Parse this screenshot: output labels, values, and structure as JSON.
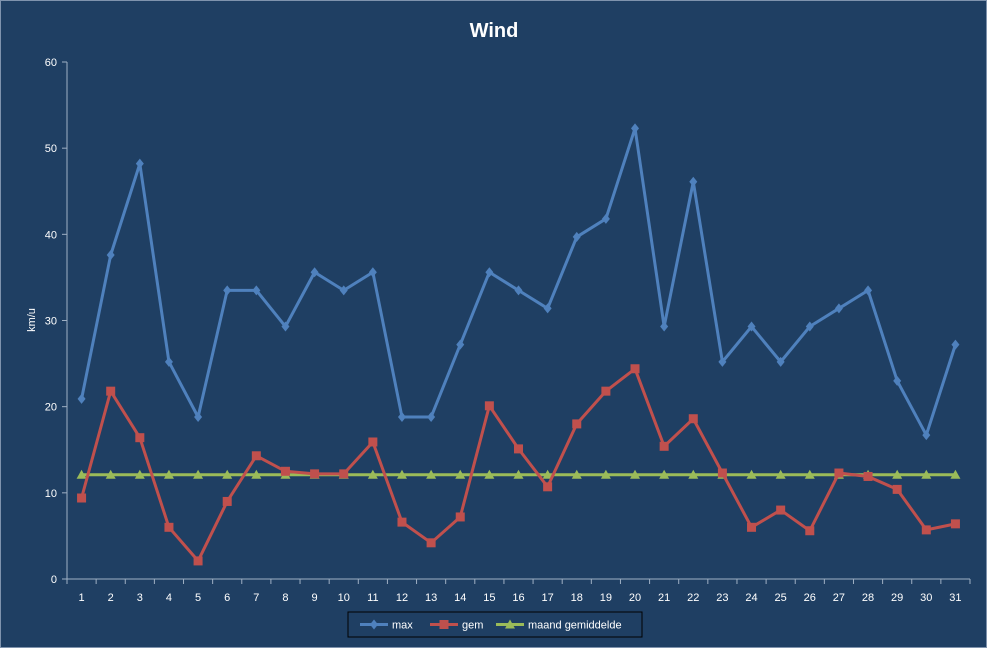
{
  "chart_data": {
    "type": "line",
    "title": "Wind",
    "ylabel": "km/u",
    "xlabel": "",
    "ylim": [
      0,
      60
    ],
    "yticks": [
      0,
      10,
      20,
      30,
      40,
      50,
      60
    ],
    "categories": [
      "1",
      "2",
      "3",
      "4",
      "5",
      "6",
      "7",
      "8",
      "9",
      "10",
      "11",
      "12",
      "13",
      "14",
      "15",
      "16",
      "17",
      "18",
      "19",
      "20",
      "21",
      "22",
      "23",
      "24",
      "25",
      "26",
      "27",
      "28",
      "29",
      "30",
      "31"
    ],
    "series": [
      {
        "name": "max",
        "color": "#4F81BD",
        "marker": "diamond",
        "values": [
          20.9,
          37.6,
          48.2,
          25.2,
          18.8,
          33.5,
          33.5,
          29.3,
          35.6,
          33.5,
          35.6,
          18.8,
          18.8,
          27.2,
          35.6,
          33.5,
          31.4,
          39.7,
          41.8,
          52.3,
          29.3,
          46.1,
          25.2,
          29.3,
          25.2,
          29.3,
          31.4,
          33.5,
          23.0,
          16.7,
          27.2
        ]
      },
      {
        "name": "gem",
        "color": "#C0504D",
        "marker": "square",
        "values": [
          9.4,
          21.8,
          16.4,
          6.0,
          2.1,
          9.0,
          14.3,
          12.5,
          12.2,
          12.2,
          15.9,
          6.6,
          4.2,
          7.2,
          20.1,
          15.1,
          10.7,
          18.0,
          21.8,
          24.4,
          15.4,
          18.6,
          12.3,
          6.0,
          8.0,
          5.6,
          12.3,
          11.9,
          10.4,
          5.7,
          6.4
        ]
      },
      {
        "name": "maand gemiddelde",
        "color": "#9BBB59",
        "marker": "triangle",
        "values": [
          12.1,
          12.1,
          12.1,
          12.1,
          12.1,
          12.1,
          12.1,
          12.1,
          12.1,
          12.1,
          12.1,
          12.1,
          12.1,
          12.1,
          12.1,
          12.1,
          12.1,
          12.1,
          12.1,
          12.1,
          12.1,
          12.1,
          12.1,
          12.1,
          12.1,
          12.1,
          12.1,
          12.1,
          12.1,
          12.1,
          12.1
        ]
      }
    ],
    "legend_position": "bottom",
    "grid": false,
    "background": "#1F3F63",
    "axis_color": "#9FB0C4"
  }
}
